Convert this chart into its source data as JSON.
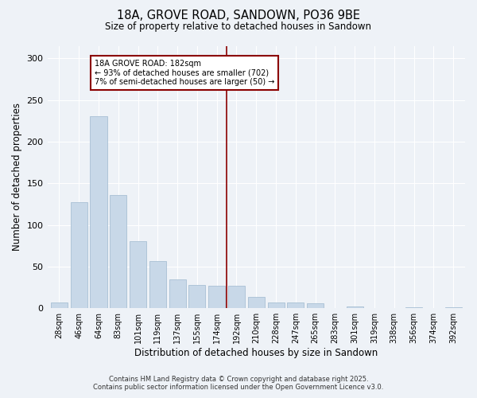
{
  "title1": "18A, GROVE ROAD, SANDOWN, PO36 9BE",
  "title2": "Size of property relative to detached houses in Sandown",
  "xlabel": "Distribution of detached houses by size in Sandown",
  "ylabel": "Number of detached properties",
  "categories": [
    "28sqm",
    "46sqm",
    "64sqm",
    "83sqm",
    "101sqm",
    "119sqm",
    "137sqm",
    "155sqm",
    "174sqm",
    "192sqm",
    "210sqm",
    "228sqm",
    "247sqm",
    "265sqm",
    "283sqm",
    "301sqm",
    "319sqm",
    "338sqm",
    "356sqm",
    "374sqm",
    "392sqm"
  ],
  "values": [
    7,
    127,
    230,
    136,
    80,
    57,
    35,
    28,
    27,
    27,
    14,
    7,
    7,
    6,
    0,
    2,
    0,
    0,
    1,
    0,
    1
  ],
  "bar_color": "#c8d8e8",
  "bar_edgecolor": "#a8c0d4",
  "vline_x_index": 9,
  "vline_color": "#8b0000",
  "annotation_title": "18A GROVE ROAD: 182sqm",
  "annotation_line1": "← 93% of detached houses are smaller (702)",
  "annotation_line2": "7% of semi-detached houses are larger (50) →",
  "annotation_box_edgecolor": "#8b0000",
  "ylim": [
    0,
    315
  ],
  "yticks": [
    0,
    50,
    100,
    150,
    200,
    250,
    300
  ],
  "background_color": "#eef2f7",
  "footer1": "Contains HM Land Registry data © Crown copyright and database right 2025.",
  "footer2": "Contains public sector information licensed under the Open Government Licence v3.0.",
  "figsize": [
    6.0,
    5.0
  ],
  "dpi": 100
}
